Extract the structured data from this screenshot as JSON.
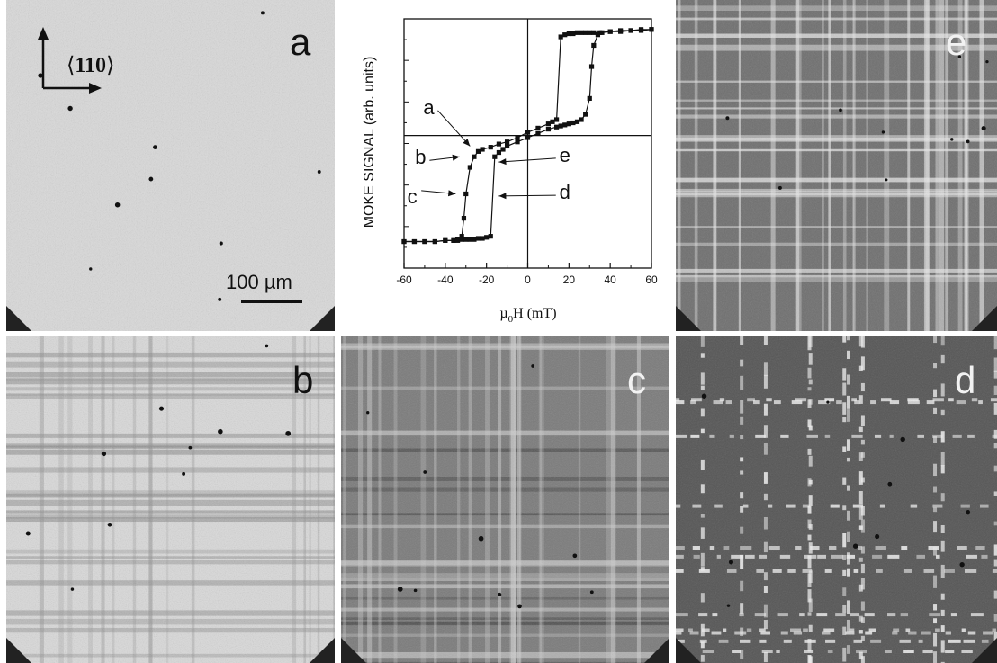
{
  "figure": {
    "panels": [
      {
        "id": "a",
        "label": "a",
        "tone": "bright",
        "stripes": "none"
      },
      {
        "id": "b",
        "label": "b",
        "tone": "bright",
        "stripes": "dark"
      },
      {
        "id": "c",
        "label": "c",
        "tone": "mid",
        "stripes": "mixed"
      },
      {
        "id": "d",
        "label": "d",
        "tone": "dark",
        "stripes": "bright-dashed"
      },
      {
        "id": "e",
        "label": "e",
        "tone": "mid-dark",
        "stripes": "bright"
      }
    ],
    "scale_bar_label": "100 µm",
    "direction_label": "110",
    "direction_brackets": [
      "⟨",
      "⟩"
    ]
  },
  "chart_data": {
    "type": "line",
    "title": "",
    "xlabel_prefix": "µ",
    "xlabel_sub": "0",
    "xlabel_suffix": "H (mT)",
    "ylabel": "MOKE SIGNAL (arb. units)",
    "xlim": [
      -60,
      60
    ],
    "ylim": [
      -1.25,
      1.1
    ],
    "xticks": [
      -60,
      -40,
      -20,
      0,
      20,
      40,
      60
    ],
    "series": [
      {
        "branch": "descending",
        "x": [
          60,
          55,
          50,
          45,
          40,
          35,
          32,
          30,
          28,
          26,
          24,
          22,
          20,
          18,
          16,
          14,
          12,
          10,
          5,
          0,
          -5,
          -10,
          -14,
          -18,
          -22,
          -24,
          -26,
          -28,
          -30,
          -31,
          -32,
          -34,
          -36,
          -40,
          -45,
          -50,
          -55,
          -60
        ],
        "y": [
          1.0,
          0.99,
          0.99,
          0.98,
          0.98,
          0.97,
          0.97,
          0.97,
          0.97,
          0.97,
          0.97,
          0.96,
          0.96,
          0.95,
          0.93,
          0.15,
          0.13,
          0.11,
          0.07,
          0.03,
          -0.02,
          -0.06,
          -0.08,
          -0.11,
          -0.13,
          -0.15,
          -0.2,
          -0.3,
          -0.55,
          -0.78,
          -0.95,
          -0.98,
          -0.99,
          -0.99,
          -1.0,
          -1.0,
          -1.0,
          -1.0
        ]
      },
      {
        "branch": "ascending",
        "x": [
          -60,
          -55,
          -50,
          -45,
          -40,
          -36,
          -34,
          -32,
          -30,
          -28,
          -26,
          -24,
          -22,
          -20,
          -18,
          -16,
          -14,
          -12,
          -10,
          -5,
          0,
          5,
          10,
          14,
          16,
          18,
          20,
          22,
          24,
          26,
          28,
          30,
          31,
          32,
          34,
          36,
          40,
          45,
          50,
          55,
          60
        ],
        "y": [
          -1.0,
          -1.0,
          -1.0,
          -1.0,
          -0.99,
          -0.99,
          -0.99,
          -0.98,
          -0.98,
          -0.98,
          -0.98,
          -0.97,
          -0.97,
          -0.96,
          -0.95,
          -0.2,
          -0.16,
          -0.13,
          -0.1,
          -0.06,
          -0.02,
          0.02,
          0.06,
          0.08,
          0.09,
          0.1,
          0.11,
          0.12,
          0.13,
          0.15,
          0.2,
          0.35,
          0.65,
          0.85,
          0.95,
          0.97,
          0.98,
          0.99,
          0.99,
          1.0,
          1.0
        ]
      }
    ],
    "annotations": [
      {
        "label": "a",
        "point": [
          -27,
          -0.12
        ]
      },
      {
        "label": "b",
        "point": [
          -32,
          -0.22
        ]
      },
      {
        "label": "c",
        "point": [
          -33,
          -0.55
        ]
      },
      {
        "label": "d",
        "point": [
          -15,
          -0.55
        ]
      },
      {
        "label": "e",
        "point": [
          -16,
          -0.22
        ]
      }
    ],
    "crosshair": {
      "x": 0,
      "y": 0
    }
  }
}
